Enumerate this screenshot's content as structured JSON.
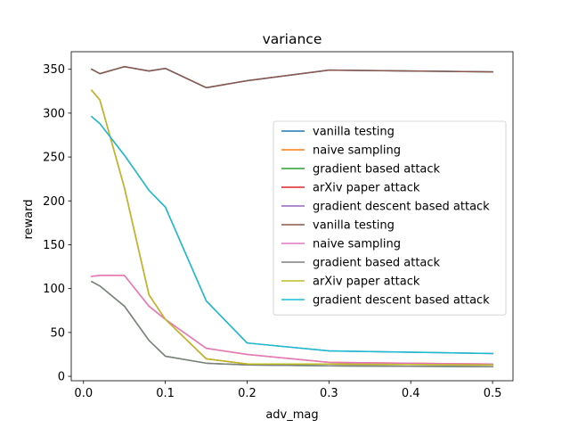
{
  "chart_data": {
    "type": "line",
    "title": "variance",
    "xlabel": "adv_mag",
    "ylabel": "reward",
    "xlim": [
      -0.015,
      0.525
    ],
    "ylim": [
      -5,
      370
    ],
    "xticks": [
      0.0,
      0.1,
      0.2,
      0.3,
      0.4,
      0.5
    ],
    "xtick_labels": [
      "0.0",
      "0.1",
      "0.2",
      "0.3",
      "0.4",
      "0.5"
    ],
    "yticks": [
      0,
      50,
      100,
      150,
      200,
      250,
      300,
      350
    ],
    "ytick_labels": [
      "0",
      "50",
      "100",
      "150",
      "200",
      "250",
      "300",
      "350"
    ],
    "grid": false,
    "legend_position": "center-right",
    "x": [
      0.01,
      0.02,
      0.05,
      0.08,
      0.1,
      0.15,
      0.2,
      0.3,
      0.5
    ],
    "series": [
      {
        "name": "vanilla testing",
        "color": "#1f77b4",
        "values": [
          350,
          345,
          353,
          348,
          351,
          329,
          337,
          349,
          347
        ]
      },
      {
        "name": "naive sampling",
        "color": "#ff7f0e",
        "values": [
          114,
          115,
          115,
          80,
          65,
          32,
          25,
          16,
          14
        ]
      },
      {
        "name": "gradient based attack",
        "color": "#2ca02c",
        "values": [
          108,
          103,
          80,
          41,
          23,
          15,
          13,
          12,
          11
        ]
      },
      {
        "name": "arXiv paper attack",
        "color": "#d62728",
        "values": [
          326,
          315,
          215,
          93,
          65,
          20,
          14,
          14,
          13
        ]
      },
      {
        "name": "gradient descent based attack",
        "color": "#9467bd",
        "values": [
          296,
          288,
          252,
          212,
          193,
          86,
          38,
          29,
          26
        ]
      },
      {
        "name": "vanilla testing",
        "color": "#8c564b",
        "values": [
          350,
          345,
          353,
          348,
          351,
          329,
          337,
          349,
          347
        ]
      },
      {
        "name": "naive sampling",
        "color": "#e377c2",
        "values": [
          114,
          115,
          115,
          80,
          65,
          32,
          25,
          16,
          14
        ]
      },
      {
        "name": "gradient based attack",
        "color": "#7f7f7f",
        "values": [
          108,
          103,
          80,
          41,
          23,
          15,
          13,
          12,
          11
        ]
      },
      {
        "name": "arXiv paper attack",
        "color": "#bcbd22",
        "values": [
          326,
          315,
          215,
          93,
          65,
          20,
          14,
          14,
          13
        ]
      },
      {
        "name": "gradient descent based attack",
        "color": "#17becf",
        "values": [
          296,
          288,
          252,
          212,
          193,
          86,
          38,
          29,
          26
        ]
      }
    ]
  }
}
